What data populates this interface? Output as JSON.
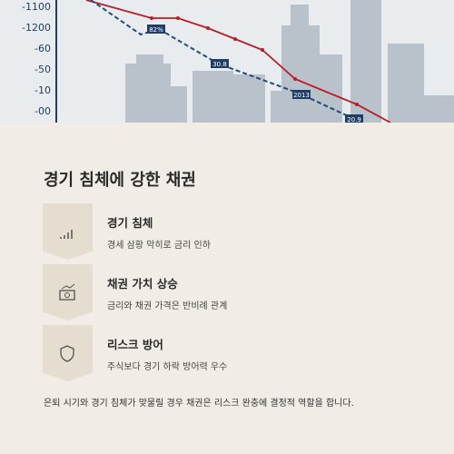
{
  "hero": {
    "axis_labels": [
      "-1100",
      "-1200",
      "-60",
      "-50",
      "-10",
      "-00"
    ],
    "point_labels": [
      "82%",
      "30.8",
      "2013",
      "20.9"
    ]
  },
  "section": {
    "title": "경기 침체에 강한 채권",
    "items": [
      {
        "title": "경기 침체",
        "text": "경세 삼황 악히로 금리 인하"
      },
      {
        "title": "채권 가치 상승",
        "text": "금리와 채권 가격은 반비례 관계"
      },
      {
        "title": "리스크 방어",
        "text": "주식보다 경기 하락 방어력 우수"
      }
    ],
    "footer": "은퇴 시기와 경기 침체가 맞물릴 경우 채권은 리스크 완충에 결정적 역할을 합니다."
  }
}
